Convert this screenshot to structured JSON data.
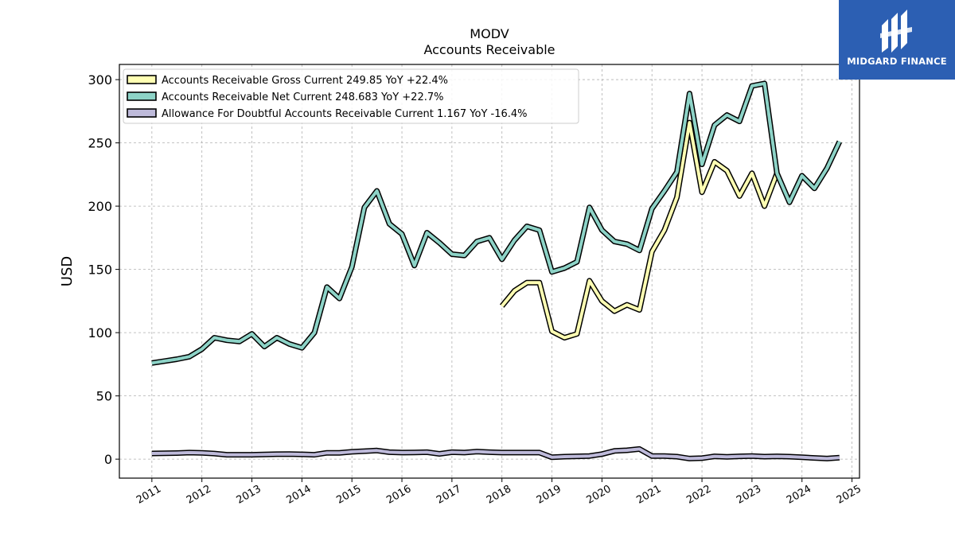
{
  "chart_data": {
    "type": "line",
    "title": "MODV",
    "subtitle": "Accounts Receivable",
    "ylabel": "USD",
    "xlabel": "",
    "ylim": [
      -15,
      312
    ],
    "xlim": [
      2010.35,
      2025.15
    ],
    "yticks": [
      0,
      50,
      100,
      150,
      200,
      250,
      300
    ],
    "xticks": [
      "2011",
      "2012",
      "2013",
      "2014",
      "2015",
      "2016",
      "2017",
      "2018",
      "2019",
      "2020",
      "2021",
      "2022",
      "2023",
      "2024",
      "2025"
    ],
    "grid": true,
    "legend_position": "top-left",
    "series": [
      {
        "name": "Accounts Receivable Gross Current  249.85 YoY +22.4%",
        "color": "#ffffb3",
        "points": [
          [
            2018.0,
            121
          ],
          [
            2018.25,
            133
          ],
          [
            2018.5,
            139.5
          ],
          [
            2018.75,
            139.5
          ],
          [
            2019.0,
            101
          ],
          [
            2019.25,
            96
          ],
          [
            2019.5,
            99
          ],
          [
            2019.75,
            141
          ],
          [
            2020.0,
            125
          ],
          [
            2020.25,
            117
          ],
          [
            2020.5,
            122
          ],
          [
            2020.75,
            118
          ],
          [
            2021.0,
            164
          ],
          [
            2021.25,
            181
          ],
          [
            2021.5,
            207
          ],
          [
            2021.75,
            266
          ],
          [
            2022.0,
            211
          ],
          [
            2022.25,
            235
          ],
          [
            2022.5,
            228
          ],
          [
            2022.75,
            208
          ],
          [
            2023.0,
            226
          ],
          [
            2023.25,
            200
          ],
          [
            2023.5,
            226
          ]
        ]
      },
      {
        "name": "Accounts Receivable Net Current  248.683 YoY +22.7%",
        "color": "#8dd3c7",
        "points": [
          [
            2011.0,
            76
          ],
          [
            2011.25,
            77.5
          ],
          [
            2011.5,
            79
          ],
          [
            2011.75,
            81
          ],
          [
            2012.0,
            87
          ],
          [
            2012.25,
            96
          ],
          [
            2012.5,
            94
          ],
          [
            2012.75,
            93
          ],
          [
            2013.0,
            99
          ],
          [
            2013.25,
            89
          ],
          [
            2013.5,
            96
          ],
          [
            2013.75,
            91
          ],
          [
            2014.0,
            88
          ],
          [
            2014.25,
            100
          ],
          [
            2014.5,
            136
          ],
          [
            2014.75,
            127
          ],
          [
            2015.0,
            152
          ],
          [
            2015.25,
            199
          ],
          [
            2015.5,
            212
          ],
          [
            2015.75,
            186
          ],
          [
            2016.0,
            178
          ],
          [
            2016.25,
            153
          ],
          [
            2016.5,
            179
          ],
          [
            2016.75,
            171
          ],
          [
            2017.0,
            162
          ],
          [
            2017.25,
            161
          ],
          [
            2017.5,
            172
          ],
          [
            2017.75,
            175
          ],
          [
            2018.0,
            158
          ],
          [
            2018.25,
            173
          ],
          [
            2018.5,
            184
          ],
          [
            2018.75,
            181
          ],
          [
            2019.0,
            148
          ],
          [
            2019.25,
            151
          ],
          [
            2019.5,
            156
          ],
          [
            2019.75,
            199
          ],
          [
            2020.0,
            181
          ],
          [
            2020.25,
            172
          ],
          [
            2020.5,
            170
          ],
          [
            2020.75,
            165
          ],
          [
            2021.0,
            198
          ],
          [
            2021.25,
            212
          ],
          [
            2021.5,
            227
          ],
          [
            2021.75,
            289
          ],
          [
            2022.0,
            233
          ],
          [
            2022.25,
            264
          ],
          [
            2022.5,
            272
          ],
          [
            2022.75,
            267
          ],
          [
            2023.0,
            295
          ],
          [
            2023.25,
            297
          ],
          [
            2023.5,
            226
          ],
          [
            2023.75,
            203
          ],
          [
            2024.0,
            224
          ],
          [
            2024.25,
            214
          ],
          [
            2024.5,
            230
          ],
          [
            2024.75,
            251
          ]
        ]
      },
      {
        "name": "Allowance For Doubtful Accounts Receivable Current  1.167 YoY -16.4%",
        "color": "#bebada",
        "points": [
          [
            2011.0,
            4.5
          ],
          [
            2011.25,
            4.6
          ],
          [
            2011.5,
            4.8
          ],
          [
            2011.75,
            5.2
          ],
          [
            2012.0,
            5.0
          ],
          [
            2012.25,
            4.4
          ],
          [
            2012.5,
            3.5
          ],
          [
            2012.75,
            3.5
          ],
          [
            2013.0,
            3.5
          ],
          [
            2013.25,
            3.7
          ],
          [
            2013.5,
            3.9
          ],
          [
            2013.75,
            4.0
          ],
          [
            2014.0,
            3.8
          ],
          [
            2014.25,
            3.5
          ],
          [
            2014.5,
            5.0
          ],
          [
            2014.75,
            5.0
          ],
          [
            2015.0,
            5.8
          ],
          [
            2015.25,
            6.3
          ],
          [
            2015.5,
            6.8
          ],
          [
            2015.75,
            5.5
          ],
          [
            2016.0,
            5.2
          ],
          [
            2016.25,
            5.3
          ],
          [
            2016.5,
            5.5
          ],
          [
            2016.75,
            4.2
          ],
          [
            2017.0,
            5.5
          ],
          [
            2017.25,
            5.2
          ],
          [
            2017.5,
            6.0
          ],
          [
            2017.75,
            5.5
          ],
          [
            2018.0,
            5.2
          ],
          [
            2018.25,
            5.2
          ],
          [
            2018.5,
            5.2
          ],
          [
            2018.75,
            5.2
          ],
          [
            2019.0,
            1.5
          ],
          [
            2019.25,
            2.0
          ],
          [
            2019.5,
            2.2
          ],
          [
            2019.75,
            2.5
          ],
          [
            2020.0,
            4.0
          ],
          [
            2020.25,
            6.5
          ],
          [
            2020.5,
            7.0
          ],
          [
            2020.75,
            8.0
          ],
          [
            2021.0,
            2.5
          ],
          [
            2021.25,
            2.5
          ],
          [
            2021.5,
            2.0
          ],
          [
            2021.75,
            0.5
          ],
          [
            2022.0,
            0.8
          ],
          [
            2022.25,
            2.2
          ],
          [
            2022.5,
            1.8
          ],
          [
            2022.75,
            2.2
          ],
          [
            2023.0,
            2.5
          ],
          [
            2023.25,
            2.0
          ],
          [
            2023.5,
            2.2
          ],
          [
            2023.75,
            2.0
          ],
          [
            2024.0,
            1.5
          ],
          [
            2024.25,
            1.0
          ],
          [
            2024.5,
            0.5
          ],
          [
            2024.75,
            1.2
          ]
        ]
      }
    ]
  },
  "logo": {
    "text": "MIDGARD FINANCE",
    "background": "#2c5fb3"
  }
}
